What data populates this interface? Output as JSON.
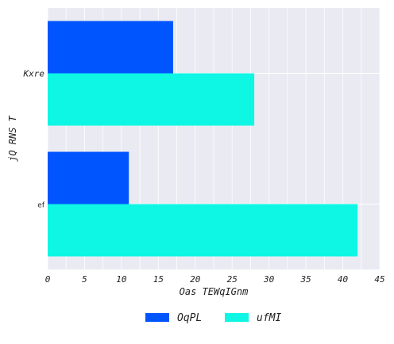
{
  "chart_data": {
    "type": "bar",
    "orientation": "horizontal",
    "categories": [
      "Kxre",
      "ef"
    ],
    "series": [
      {
        "name": "OqPL",
        "values": [
          17,
          11
        ],
        "color": "#0055ff"
      },
      {
        "name": "ufMI",
        "values": [
          28,
          42
        ],
        "color": "#0ef6e4"
      }
    ],
    "xlabel": "Oas TEWqIGnm",
    "ylabel": "jQ RNS  T",
    "xlim": [
      0,
      45
    ],
    "xticks": [
      0,
      5,
      10,
      15,
      20,
      25,
      30,
      35,
      40,
      45
    ],
    "grid": true,
    "legend_position": "bottom-center",
    "background": "#eaeaf2"
  }
}
